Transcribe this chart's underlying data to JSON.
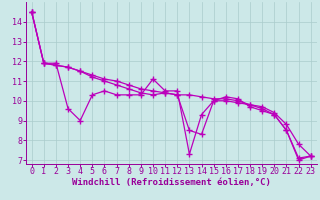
{
  "xlabel": "Windchill (Refroidissement éolien,°C)",
  "x": [
    0,
    1,
    2,
    3,
    4,
    5,
    6,
    7,
    8,
    9,
    10,
    11,
    12,
    13,
    14,
    15,
    16,
    17,
    18,
    19,
    20,
    21,
    22,
    23
  ],
  "series": [
    [
      14.5,
      11.9,
      11.9,
      9.6,
      9.0,
      10.3,
      10.5,
      10.3,
      10.3,
      10.3,
      11.1,
      10.5,
      10.5,
      7.3,
      9.3,
      10.0,
      10.2,
      10.1,
      9.7,
      9.5,
      9.3,
      8.5,
      7.0,
      7.2
    ],
    [
      14.5,
      11.9,
      11.8,
      11.7,
      11.5,
      11.3,
      11.1,
      11.0,
      10.8,
      10.6,
      10.5,
      10.4,
      10.3,
      8.5,
      8.3,
      10.0,
      10.0,
      9.9,
      9.8,
      9.7,
      9.4,
      8.8,
      7.8,
      7.2
    ],
    [
      14.5,
      11.9,
      11.8,
      11.7,
      11.5,
      11.2,
      11.0,
      10.8,
      10.6,
      10.4,
      10.3,
      10.4,
      10.3,
      10.3,
      10.2,
      10.1,
      10.1,
      10.0,
      9.8,
      9.6,
      9.3,
      8.5,
      7.1,
      7.2
    ]
  ],
  "line_color": "#bb00bb",
  "marker": "+",
  "markersize": 4,
  "linewidth": 0.9,
  "background_color": "#cce8e8",
  "grid_color": "#aacccc",
  "ylim_min": 6.8,
  "ylim_max": 15.0,
  "xlim_min": -0.5,
  "xlim_max": 23.5,
  "yticks": [
    7,
    8,
    9,
    10,
    11,
    12,
    13,
    14
  ],
  "xticks": [
    0,
    1,
    2,
    3,
    4,
    5,
    6,
    7,
    8,
    9,
    10,
    11,
    12,
    13,
    14,
    15,
    16,
    17,
    18,
    19,
    20,
    21,
    22,
    23
  ],
  "tick_color": "#990099",
  "label_color": "#990099",
  "label_fontsize": 6.5,
  "tick_fontsize": 6.0
}
